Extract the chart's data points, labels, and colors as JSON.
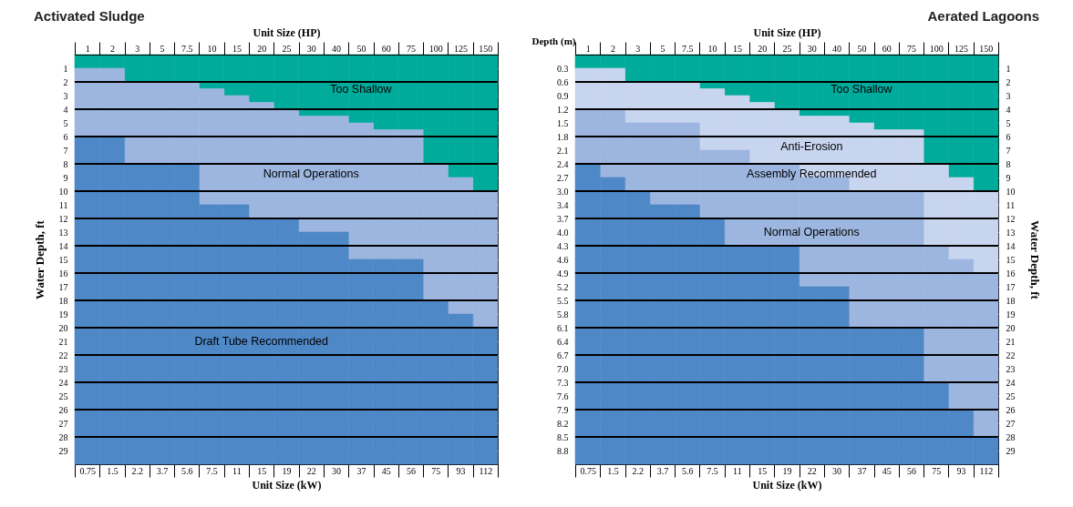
{
  "chart_data": [
    {
      "type": "bar",
      "title": "Activated Sludge",
      "stacked": true,
      "xlabel": "Unit Size (HP)",
      "ylabel": "Water Depth, ft",
      "categories": [
        "1",
        "2",
        "3",
        "5",
        "7.5",
        "10",
        "15",
        "20",
        "25",
        "30",
        "40",
        "50",
        "60",
        "75",
        "100",
        "125",
        "150"
      ],
      "annotations": [
        "Unit Size (kW)",
        "0.75",
        "1.5",
        "2.2",
        "3.7",
        "5.6",
        "7.5",
        "11",
        "15",
        "19",
        "22",
        "30",
        "37",
        "45",
        "56",
        "75",
        "93",
        "112"
      ],
      "ylim": [
        30,
        0
      ],
      "yticks": [
        1,
        2,
        3,
        4,
        5,
        6,
        7,
        8,
        9,
        10,
        11,
        12,
        13,
        14,
        15,
        16,
        17,
        18,
        19,
        20,
        21,
        22,
        23,
        24,
        25,
        26,
        27,
        28,
        29
      ],
      "series": [
        {
          "name": "Too Shallow",
          "color": "#00ab9b",
          "values": [
            1,
            1,
            2,
            2,
            2,
            2.5,
            3,
            3.5,
            4,
            4.5,
            4.5,
            5,
            5.5,
            5.5,
            8,
            9,
            10
          ]
        },
        {
          "name": "Normal Operations",
          "color": "#9db6e0",
          "values": [
            5,
            5,
            6,
            6,
            6,
            8.5,
            8,
            8.5,
            8,
            8.5,
            8.5,
            10,
            9.5,
            9.5,
            10,
            10,
            10
          ]
        },
        {
          "name": "Draft Tube Recommended",
          "color": "#4f88c7",
          "values": [
            24,
            24,
            22,
            22,
            22,
            19,
            19,
            18,
            18,
            17,
            17,
            15,
            15,
            15,
            12,
            11,
            10
          ]
        }
      ],
      "grid": "y"
    },
    {
      "type": "bar",
      "title": "Aerated Lagoons",
      "stacked": true,
      "xlabel": "Unit Size (HP)",
      "ylabel": "Depth (m)",
      "y2label": "Water Depth, ft",
      "categories": [
        "1",
        "2",
        "3",
        "5",
        "7.5",
        "10",
        "15",
        "20",
        "25",
        "30",
        "40",
        "50",
        "60",
        "75",
        "100",
        "125",
        "150"
      ],
      "annotations": [
        "Unit Size (kW)",
        "0.75",
        "1.5",
        "2.2",
        "3.7",
        "5.6",
        "7.5",
        "11",
        "15",
        "19",
        "22",
        "30",
        "37",
        "45",
        "56",
        "75",
        "93",
        "112"
      ],
      "ylim": [
        9.144,
        0
      ],
      "yticks": [
        {
          "value": 0.3048,
          "label": "0.3"
        },
        {
          "value": 0.6096,
          "label": "0.6"
        },
        {
          "value": 0.9144,
          "label": "0.9"
        },
        {
          "value": 1.2192,
          "label": "1.2"
        },
        {
          "value": 1.524,
          "label": "1.5"
        },
        {
          "value": 1.8288,
          "label": "1.8"
        },
        {
          "value": 2.1336,
          "label": "2.1"
        },
        {
          "value": 2.4384,
          "label": "2.4"
        },
        {
          "value": 2.7432,
          "label": "2.7"
        },
        {
          "value": 3.048,
          "label": "3.0"
        },
        {
          "value": 3.3528,
          "label": "3.4"
        },
        {
          "value": 3.6576,
          "label": "3.7"
        },
        {
          "value": 3.9624,
          "label": "4.0"
        },
        {
          "value": 4.2672,
          "label": "4.3"
        },
        {
          "value": 4.572,
          "label": "4.6"
        },
        {
          "value": 4.8768,
          "label": "4.9"
        },
        {
          "value": 5.1816,
          "label": "5.2"
        },
        {
          "value": 5.4864,
          "label": "5.5"
        },
        {
          "value": 5.7912,
          "label": "5.8"
        },
        {
          "value": 6.096,
          "label": "6.1"
        },
        {
          "value": 6.4008,
          "label": "6.4"
        },
        {
          "value": 6.7056,
          "label": "6.7"
        },
        {
          "value": 7.0104,
          "label": "7.0"
        },
        {
          "value": 7.3152,
          "label": "7.3"
        },
        {
          "value": 7.62,
          "label": "7.6"
        },
        {
          "value": 7.9248,
          "label": "7.9"
        },
        {
          "value": 8.2296,
          "label": "8.2"
        },
        {
          "value": 8.5344,
          "label": "8.5"
        },
        {
          "value": 8.8392,
          "label": "8.8"
        }
      ],
      "y2lim": [
        30,
        0
      ],
      "y2ticks": [
        1,
        2,
        3,
        4,
        5,
        6,
        7,
        8,
        9,
        10,
        11,
        12,
        13,
        14,
        15,
        16,
        17,
        18,
        19,
        20,
        21,
        22,
        23,
        24,
        25,
        26,
        27,
        28,
        29
      ],
      "series": [
        {
          "name": "Too Shallow",
          "color": "#00ab9b",
          "axis": "y2",
          "values": [
            1,
            1,
            2,
            2,
            2,
            2.5,
            3,
            3.5,
            4,
            4.5,
            4.5,
            5,
            5.5,
            5.5,
            8,
            9,
            10
          ]
        },
        {
          "name": "Anti-Erosion\nAssembly Recommended",
          "color": "#c8d5ef",
          "axis": "y2",
          "values": [
            3,
            3,
            3,
            3,
            3,
            4.5,
            4,
            4.5,
            4,
            4.5,
            4.5,
            5,
            4.5,
            4.5,
            6,
            6,
            6
          ]
        },
        {
          "name": "Normal Operations",
          "color": "#9db6e0",
          "axis": "y2",
          "values": [
            4,
            5,
            5,
            6,
            6,
            5,
            7,
            6,
            6,
            8,
            8,
            10,
            10,
            10,
            10,
            11,
            12
          ]
        },
        {
          "color": "#4f88c7",
          "axis": "y2",
          "values": [
            22,
            21,
            20,
            19,
            19,
            18,
            16,
            16,
            16,
            13,
            13,
            10,
            10,
            10,
            6,
            4,
            2
          ]
        }
      ],
      "grid": "y"
    }
  ]
}
